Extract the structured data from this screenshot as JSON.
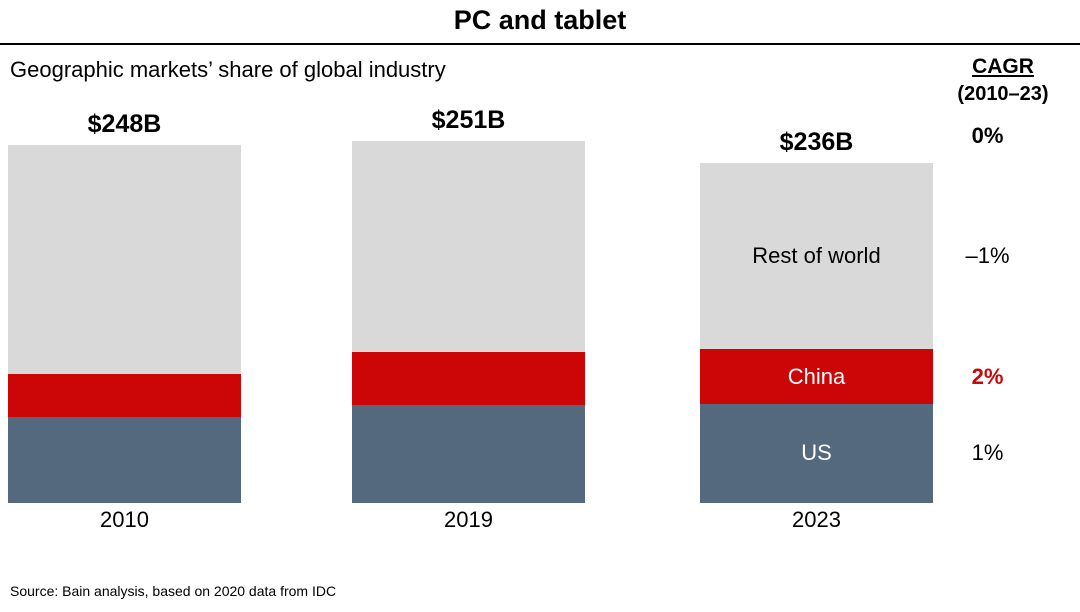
{
  "title": "PC and tablet",
  "subtitle": "Geographic markets’ share of global industry",
  "cagr": {
    "label": "CAGR",
    "period": "(2010–23)"
  },
  "source": "Source: Bain analysis, based on 2020 data from IDC",
  "chart_data": {
    "type": "bar",
    "stacked": true,
    "unit": "$B",
    "title": "PC and tablet",
    "subtitle": "Geographic markets’ share of global industry",
    "grid": false,
    "legend_position": "in-bar",
    "categories": [
      "2010",
      "2019",
      "2023"
    ],
    "totals": [
      248,
      251,
      236
    ],
    "totals_label": [
      "$248B",
      "$251B",
      "$236B"
    ],
    "series": [
      {
        "name": "US",
        "values": [
          60,
          68,
          69
        ],
        "share": [
          0.24,
          0.271,
          0.291
        ],
        "color": "#54697e",
        "label_color": "#ffffff",
        "cagr": "1%",
        "cagr_color": "#000000",
        "cagr_bold": false
      },
      {
        "name": "China",
        "values": [
          30,
          37,
          38
        ],
        "share": [
          0.12,
          0.147,
          0.16
        ],
        "color": "#cc0606",
        "label_color": "#ffffff",
        "cagr": "2%",
        "cagr_color": "#cc0606",
        "cagr_bold": true
      },
      {
        "name": "Rest of world",
        "values": [
          158,
          146,
          129
        ],
        "share": [
          0.64,
          0.582,
          0.549
        ],
        "color": "#d9d9d9",
        "label_color": "#000000",
        "cagr": "–1%",
        "cagr_color": "#000000",
        "cagr_bold": false
      }
    ],
    "total_cagr": "0%",
    "label_bar_index": 2
  }
}
